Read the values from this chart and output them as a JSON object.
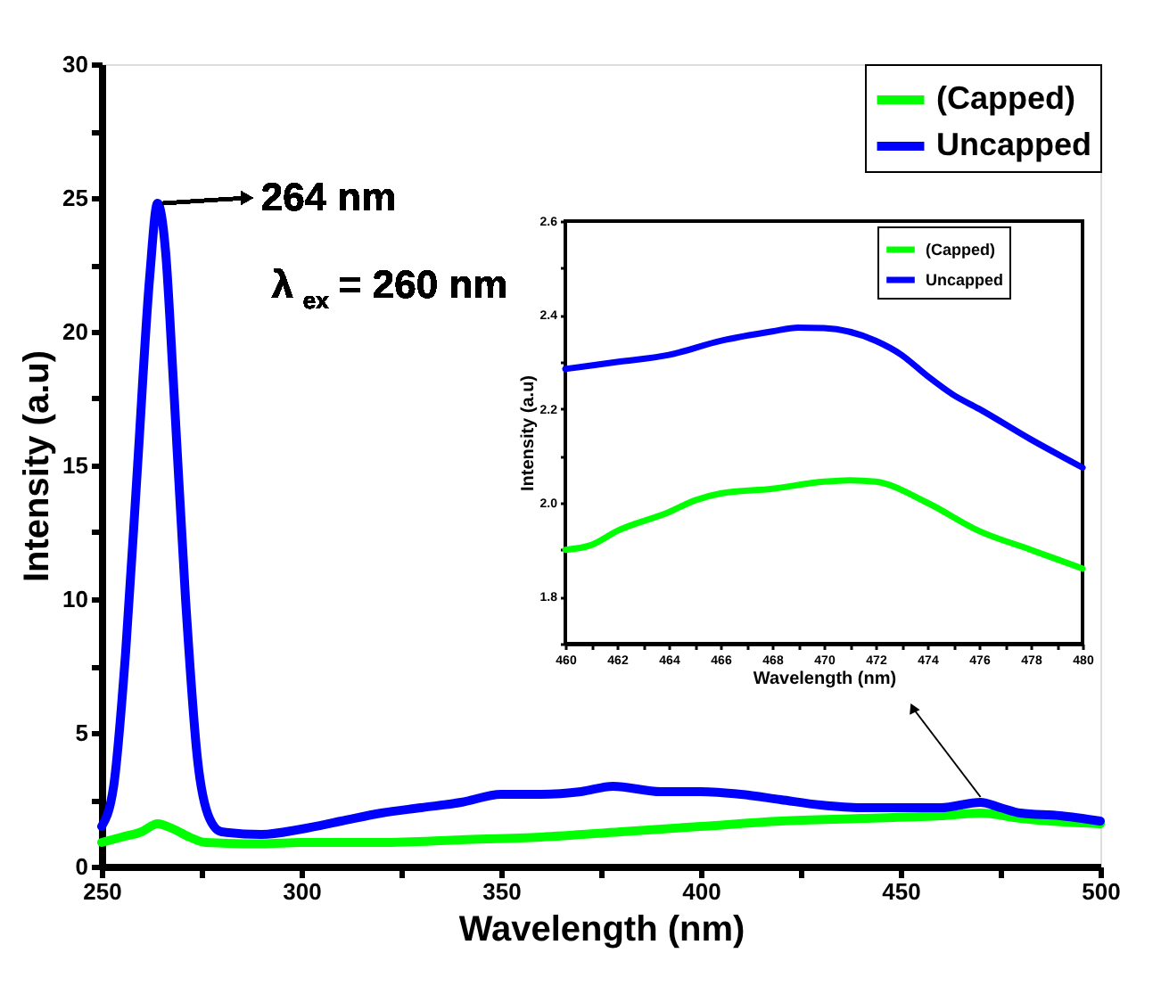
{
  "chart_data": [
    {
      "type": "line",
      "xlabel": "Wavelength (nm)",
      "ylabel": "Intensity (a.u)",
      "legend": "top right",
      "grid": false,
      "marker": "none",
      "line_style": "solid",
      "xlim": [
        250,
        500
      ],
      "ylim": [
        0,
        30
      ],
      "xticks": [
        250,
        {
          "value": 275,
          "label": null
        },
        300,
        {
          "value": 325,
          "label": null
        },
        350,
        {
          "value": 375,
          "label": null
        },
        400,
        {
          "value": 425,
          "label": null
        },
        450,
        {
          "value": 475,
          "label": null
        },
        500
      ],
      "yticks": [
        0,
        {
          "value": 2.5,
          "label": null
        },
        5,
        {
          "value": 7.5,
          "label": null
        },
        10,
        {
          "value": 12.5,
          "label": null
        },
        15,
        {
          "value": 17.5,
          "label": null
        },
        20,
        {
          "value": 22.5,
          "label": null
        },
        25,
        {
          "value": 27.5,
          "label": null
        },
        30
      ],
      "series": [
        {
          "name": "(Capped)",
          "color": "#00ff00",
          "x": [
            250,
            255,
            260,
            264,
            268,
            272,
            276,
            290,
            300,
            320,
            340,
            360,
            380,
            400,
            420,
            440,
            460,
            470,
            480,
            500
          ],
          "values": [
            0.9,
            1.1,
            1.3,
            1.6,
            1.4,
            1.1,
            0.9,
            0.85,
            0.9,
            0.9,
            1.0,
            1.1,
            1.3,
            1.5,
            1.7,
            1.8,
            1.9,
            2.0,
            1.8,
            1.6
          ]
        },
        {
          "name": "Uncapped",
          "color": "#0000ff",
          "x": [
            250,
            253,
            256,
            259,
            262,
            264,
            266,
            268,
            271,
            274,
            277,
            280,
            290,
            300,
            310,
            320,
            330,
            340,
            350,
            360,
            370,
            378,
            390,
            400,
            410,
            420,
            430,
            440,
            450,
            460,
            470,
            475,
            480,
            490,
            500
          ],
          "values": [
            1.5,
            3,
            8,
            15,
            22,
            24.8,
            23,
            18,
            10,
            4,
            1.8,
            1.3,
            1.2,
            1.4,
            1.7,
            2.0,
            2.2,
            2.4,
            2.7,
            2.7,
            2.8,
            3.0,
            2.8,
            2.8,
            2.7,
            2.5,
            2.3,
            2.2,
            2.2,
            2.2,
            2.4,
            2.2,
            2.0,
            1.9,
            1.7
          ]
        }
      ],
      "annotations": [
        {
          "text": "264 nm",
          "x": 264,
          "y": 24.8
        },
        "λ$_{ex}$ = 260 nm"
      ]
    },
    {
      "type": "line",
      "xlabel": "Wavelength (nm)",
      "ylabel": "Intensity (a.u)",
      "legend": "top right",
      "grid": false,
      "marker": "none",
      "line_style": "solid",
      "xlim": [
        460,
        480
      ],
      "ylim": [
        1.7,
        2.6
      ],
      "xticks": [
        460,
        {
          "value": 461,
          "label": null
        },
        462,
        {
          "value": 463,
          "label": null
        },
        464,
        {
          "value": 465,
          "label": null
        },
        466,
        {
          "value": 467,
          "label": null
        },
        468,
        {
          "value": 469,
          "label": null
        },
        470,
        {
          "value": 471,
          "label": null
        },
        472,
        {
          "value": 473,
          "label": null
        },
        474,
        {
          "value": 475,
          "label": null
        },
        476,
        {
          "value": 477,
          "label": null
        },
        478,
        {
          "value": 479,
          "label": null
        },
        480
      ],
      "yticks": [
        {
          "value": 1.7,
          "label": null
        },
        {
          "value": 1.8,
          "label": "1.8"
        },
        {
          "value": 1.9,
          "label": null
        },
        {
          "value": 2.0,
          "label": "2.0"
        },
        {
          "value": 2.1,
          "label": null
        },
        {
          "value": 2.2,
          "label": "2.2"
        },
        {
          "value": 2.3,
          "label": null
        },
        {
          "value": 2.4,
          "label": "2.4"
        },
        {
          "value": 2.5,
          "label": null
        },
        {
          "value": 2.6,
          "label": "2.6"
        }
      ],
      "series": [
        {
          "name": "(Capped)",
          "color": "#00ff00",
          "x": [
            460,
            461,
            462,
            464,
            465,
            466,
            468,
            470,
            471,
            472,
            474,
            476,
            478,
            480
          ],
          "values": [
            1.9,
            1.91,
            1.94,
            1.98,
            2.005,
            2.02,
            2.03,
            2.045,
            2.048,
            2.045,
            2.0,
            1.94,
            1.9,
            1.86
          ]
        },
        {
          "name": "Uncapped",
          "color": "#0000ff",
          "x": [
            460,
            462,
            464,
            466,
            468,
            469,
            470,
            472,
            473,
            474,
            475,
            476,
            478,
            480
          ],
          "values": [
            2.285,
            2.3,
            2.315,
            2.345,
            2.365,
            2.373,
            2.372,
            2.345,
            2.315,
            2.27,
            2.23,
            2.2,
            2.135,
            2.075
          ]
        }
      ]
    }
  ]
}
